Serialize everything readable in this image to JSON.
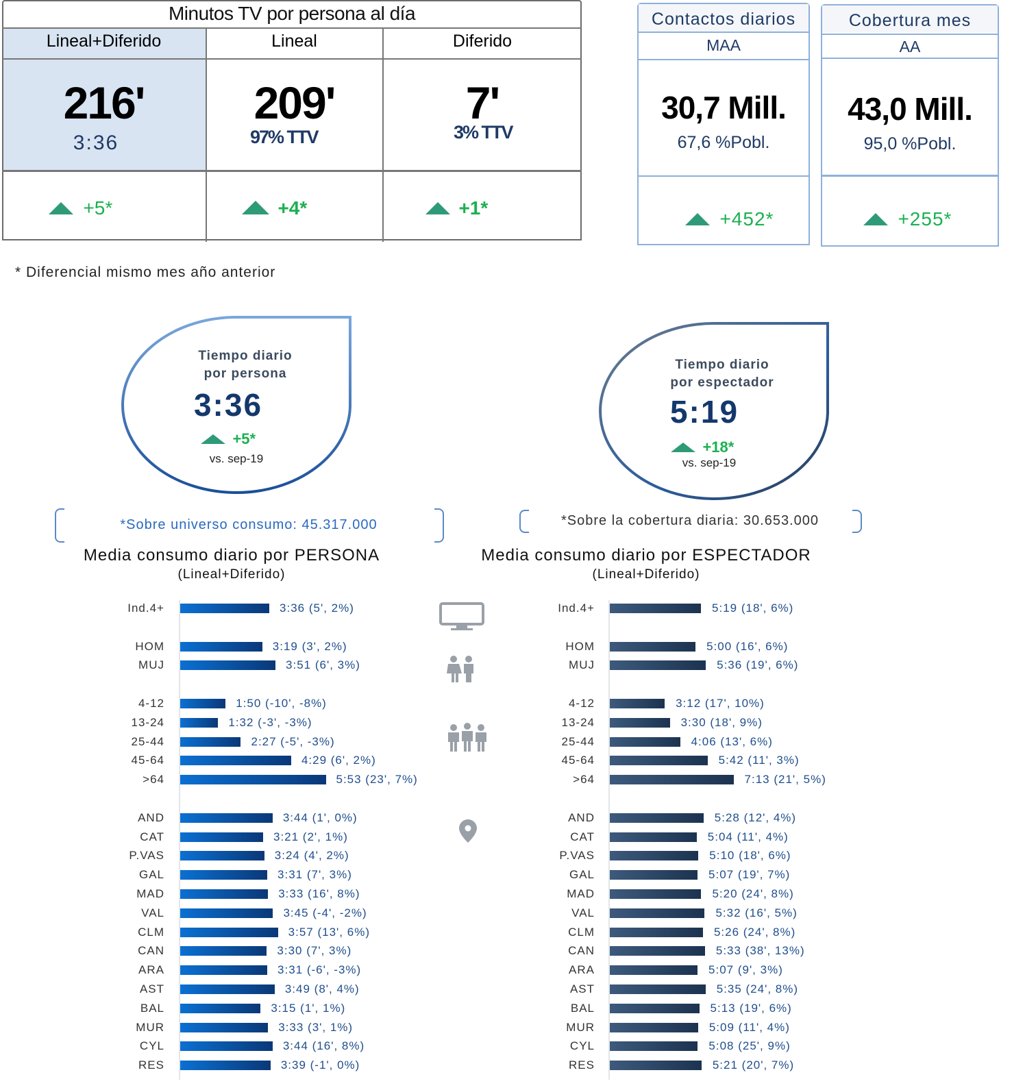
{
  "table": {
    "title": "Minutos TV por persona al día",
    "columns": [
      {
        "header": "Lineal+Diferido",
        "value": "216'",
        "sub": "3:36",
        "diff": "+5*"
      },
      {
        "header": "Lineal",
        "value": "209'",
        "sub": "97% TTV",
        "diff": "+4*"
      },
      {
        "header": "Diferido",
        "value": "7'",
        "sub": "3% TTV",
        "diff": "+1*"
      }
    ]
  },
  "cards": [
    {
      "title": "Contactos diarios",
      "subtitle": "MAA",
      "value": "30,7 Mill.",
      "sub": "67,6 %Pobl.",
      "diff": "+452*"
    },
    {
      "title": "Cobertura mes",
      "subtitle": "AA",
      "value": "43,0 Mill.",
      "sub": "95,0 %Pobl.",
      "diff": "+255*"
    }
  ],
  "footnote": "* Diferencial  mismo mes año anterior",
  "bubbles": [
    {
      "line1": "Tiempo diario",
      "line2": "por persona",
      "value": "3:36",
      "diff": "+5*",
      "vs": "vs. sep-19",
      "note": "*Sobre universo consumo: 45.317.000"
    },
    {
      "line1": "Tiempo diario",
      "line2": "por espectador",
      "value": "5:19",
      "diff": "+18*",
      "vs": "vs. sep-19",
      "note": "*Sobre la cobertura diaria: 30.653.000"
    }
  ],
  "icons": [
    "tv-icon",
    "couple-icon",
    "group-icon",
    "location-pin-icon"
  ],
  "colors": {
    "accent": "#1f4e8c",
    "positive": "#1cb050",
    "triangle": "#2e9a78",
    "highlight": "#d9e4f2"
  },
  "chart_data": [
    {
      "type": "bar",
      "orientation": "horizontal",
      "title": "Media consumo diario por PERSONA",
      "subtitle": "(Lineal+Diferido)",
      "groups": [
        [
          {
            "cat": "Ind.4+",
            "value": "3:36",
            "label": "3:36 (5', 2%)"
          }
        ],
        [
          {
            "cat": "HOM",
            "value": "3:19",
            "label": "3:19 (3', 2%)"
          },
          {
            "cat": "MUJ",
            "value": "3:51",
            "label": "3:51 (6', 3%)"
          }
        ],
        [
          {
            "cat": "4-12",
            "value": "1:50",
            "label": "1:50 (-10', -8%)"
          },
          {
            "cat": "13-24",
            "value": "1:32",
            "label": "1:32 (-3', -3%)"
          },
          {
            "cat": "25-44",
            "value": "2:27",
            "label": "2:27 (-5', -3%)"
          },
          {
            "cat": "45-64",
            "value": "4:29",
            "label": "4:29 (6', 2%)"
          },
          {
            "cat": ">64",
            "value": "5:53",
            "label": "5:53 (23', 7%)"
          }
        ],
        [
          {
            "cat": "AND",
            "value": "3:44",
            "label": "3:44 (1', 0%)"
          },
          {
            "cat": "CAT",
            "value": "3:21",
            "label": "3:21 (2', 1%)"
          },
          {
            "cat": "P.VAS",
            "value": "3:24",
            "label": "3:24 (4', 2%)"
          },
          {
            "cat": "GAL",
            "value": "3:31",
            "label": "3:31 (7', 3%)"
          },
          {
            "cat": "MAD",
            "value": "3:33",
            "label": "3:33 (16', 8%)"
          },
          {
            "cat": "VAL",
            "value": "3:45",
            "label": "3:45 (-4', -2%)"
          },
          {
            "cat": "CLM",
            "value": "3:57",
            "label": "3:57 (13', 6%)"
          },
          {
            "cat": "CAN",
            "value": "3:30",
            "label": "3:30 (7', 3%)"
          },
          {
            "cat": "ARA",
            "value": "3:31",
            "label": "3:31 (-6', -3%)"
          },
          {
            "cat": "AST",
            "value": "3:49",
            "label": "3:49 (8', 4%)"
          },
          {
            "cat": "BAL",
            "value": "3:15",
            "label": "3:15 (1', 1%)"
          },
          {
            "cat": "MUR",
            "value": "3:33",
            "label": "3:33 (3', 1%)"
          },
          {
            "cat": "CYL",
            "value": "3:44",
            "label": "3:44 (16', 8%)"
          },
          {
            "cat": "RES",
            "value": "3:39",
            "label": "3:39 (-1', 0%)"
          }
        ]
      ]
    },
    {
      "type": "bar",
      "orientation": "horizontal",
      "title": "Media consumo diario por ESPECTADOR",
      "subtitle": "(Lineal+Diferido)",
      "groups": [
        [
          {
            "cat": "Ind.4+",
            "value": "5:19",
            "label": "5:19 (18', 6%)"
          }
        ],
        [
          {
            "cat": "HOM",
            "value": "5:00",
            "label": "5:00 (16', 6%)"
          },
          {
            "cat": "MUJ",
            "value": "5:36",
            "label": "5:36 (19', 6%)"
          }
        ],
        [
          {
            "cat": "4-12",
            "value": "3:12",
            "label": "3:12 (17', 10%)"
          },
          {
            "cat": "13-24",
            "value": "3:30",
            "label": "3:30 (18', 9%)"
          },
          {
            "cat": "25-44",
            "value": "4:06",
            "label": "4:06 (13', 6%)"
          },
          {
            "cat": "45-64",
            "value": "5:42",
            "label": "5:42 (11', 3%)"
          },
          {
            "cat": ">64",
            "value": "7:13",
            "label": "7:13 (21', 5%)"
          }
        ],
        [
          {
            "cat": "AND",
            "value": "5:28",
            "label": "5:28 (12', 4%)"
          },
          {
            "cat": "CAT",
            "value": "5:04",
            "label": "5:04 (11', 4%)"
          },
          {
            "cat": "P.VAS",
            "value": "5:10",
            "label": "5:10 (18', 6%)"
          },
          {
            "cat": "GAL",
            "value": "5:07",
            "label": "5:07 (19', 7%)"
          },
          {
            "cat": "MAD",
            "value": "5:20",
            "label": "5:20 (24', 8%)"
          },
          {
            "cat": "VAL",
            "value": "5:32",
            "label": "5:32 (16', 5%)"
          },
          {
            "cat": "CLM",
            "value": "5:26",
            "label": "5:26 (24', 8%)"
          },
          {
            "cat": "CAN",
            "value": "5:33",
            "label": "5:33 (38', 13%)"
          },
          {
            "cat": "ARA",
            "value": "5:07",
            "label": "5:07 (9', 3%)"
          },
          {
            "cat": "AST",
            "value": "5:35",
            "label": "5:35 (24', 8%)"
          },
          {
            "cat": "BAL",
            "value": "5:13",
            "label": "5:13 (19', 6%)"
          },
          {
            "cat": "MUR",
            "value": "5:09",
            "label": "5:09 (11', 4%)"
          },
          {
            "cat": "CYL",
            "value": "5:08",
            "label": "5:08 (25', 9%)"
          },
          {
            "cat": "RES",
            "value": "5:21",
            "label": "5:21 (20', 7%)"
          }
        ]
      ]
    }
  ]
}
